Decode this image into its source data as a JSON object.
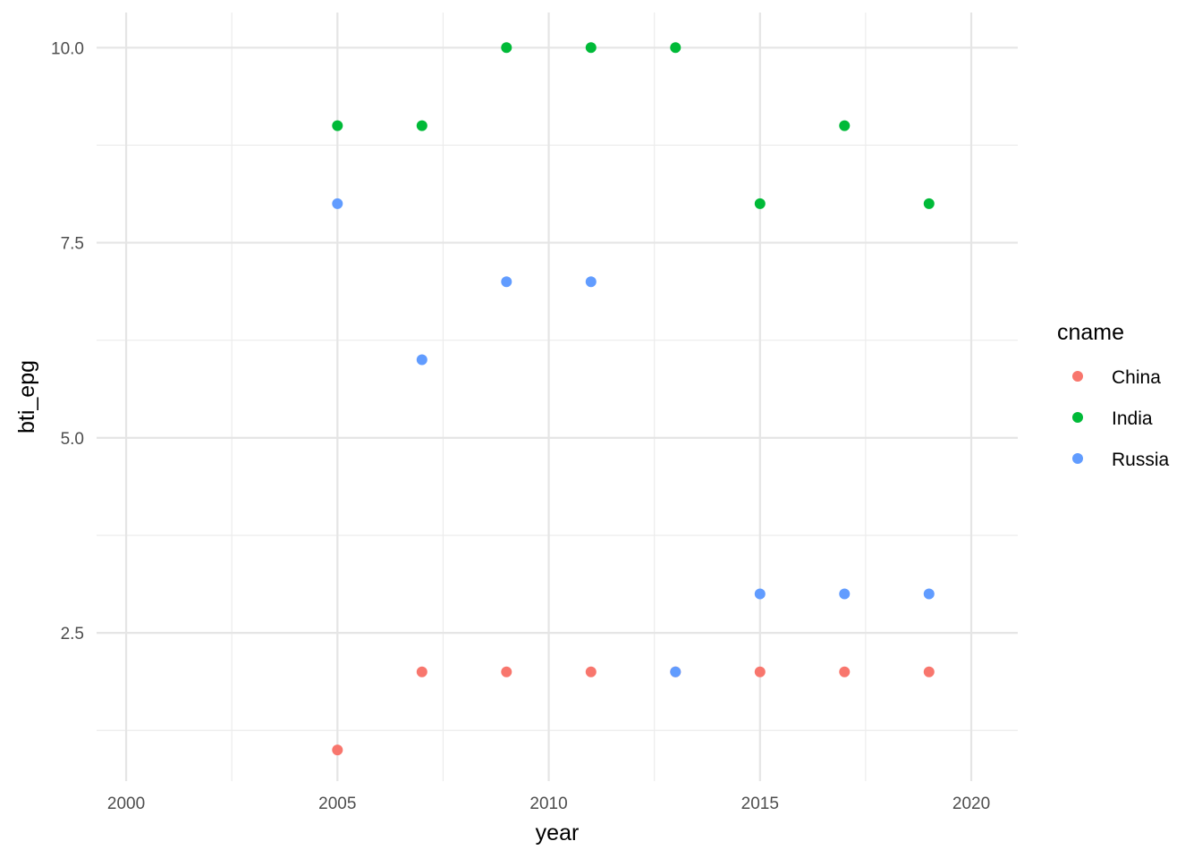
{
  "chart_data": {
    "type": "scatter",
    "xlabel": "year",
    "ylabel": "bti_epg",
    "xlim": [
      1999.3,
      2021.1
    ],
    "ylim": [
      0.6,
      10.45
    ],
    "x_ticks": [
      2000,
      2005,
      2010,
      2015,
      2020
    ],
    "x_tick_labels": [
      "2000",
      "2005",
      "2010",
      "2015",
      "2020"
    ],
    "y_ticks": [
      2.5,
      5.0,
      7.5,
      10.0
    ],
    "y_tick_labels": [
      "2.5",
      "5.0",
      "7.5",
      "10.0"
    ],
    "grid": true,
    "legend": {
      "title": "cname",
      "placement": "right"
    },
    "series": [
      {
        "name": "China",
        "color": "#F8766D",
        "x": [
          2005,
          2007,
          2009,
          2011,
          2013,
          2015,
          2017,
          2019
        ],
        "y": [
          1,
          2,
          2,
          2,
          2,
          2,
          2,
          2
        ]
      },
      {
        "name": "India",
        "color": "#00BA38",
        "x": [
          2005,
          2007,
          2009,
          2011,
          2013,
          2015,
          2017,
          2019
        ],
        "y": [
          9,
          9,
          10,
          10,
          10,
          8,
          9,
          8
        ]
      },
      {
        "name": "Russia",
        "color": "#619CFF",
        "x": [
          2005,
          2007,
          2009,
          2011,
          2013,
          2015,
          2017,
          2019
        ],
        "y": [
          8,
          6,
          7,
          7,
          2,
          3,
          3,
          3
        ]
      }
    ]
  }
}
